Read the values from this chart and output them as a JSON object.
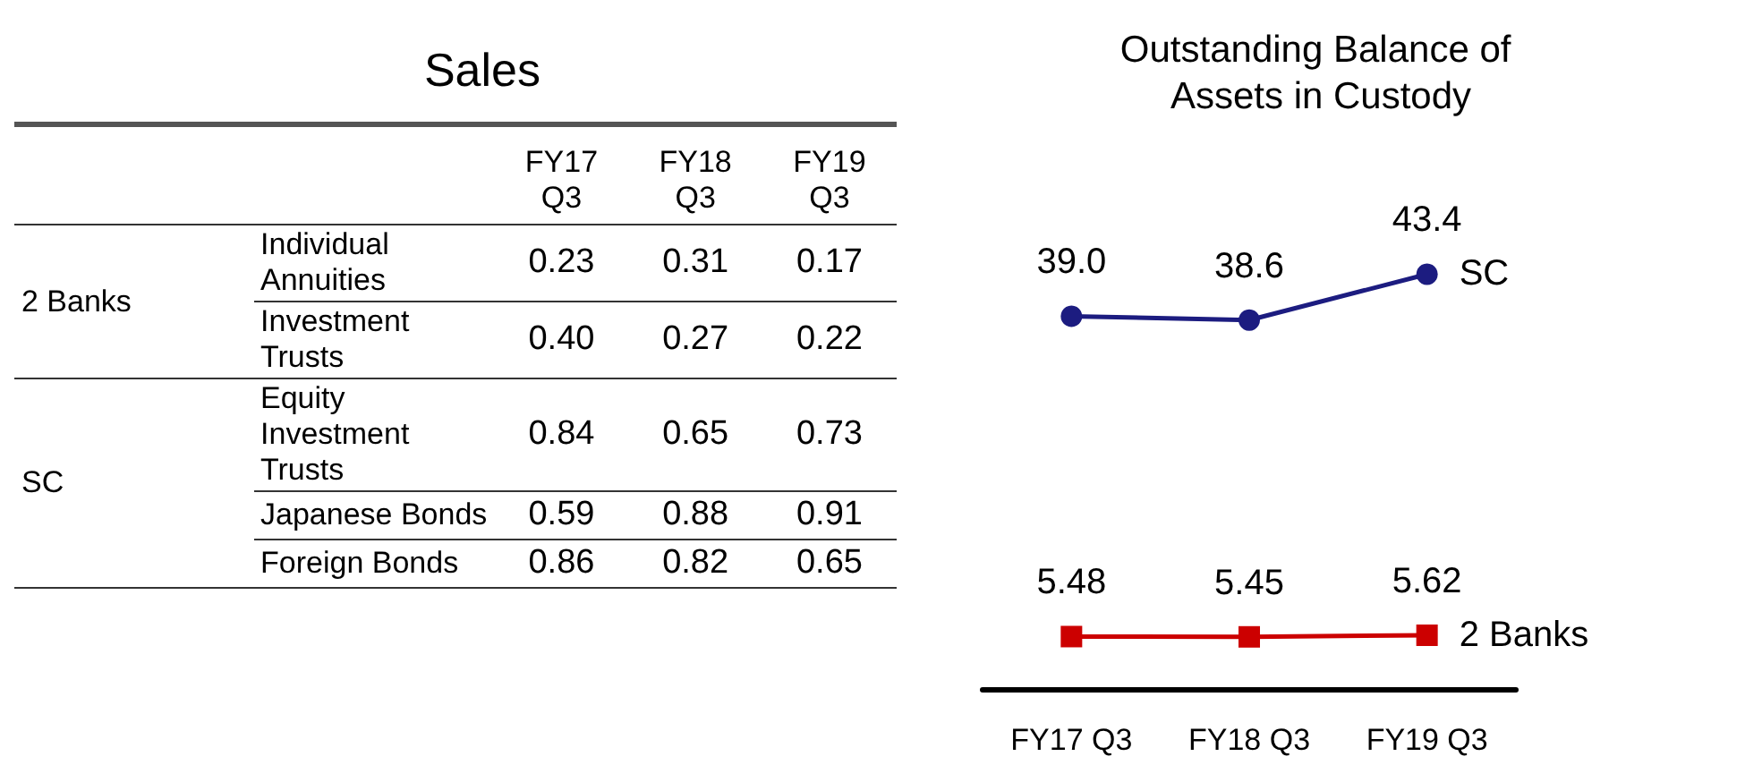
{
  "chart_data": [
    {
      "type": "other",
      "title": "Sales",
      "categories": [
        "FY17 Q3",
        "FY18 Q3",
        "FY19 Q3"
      ],
      "annotations": [
        "2 Banks",
        "SC"
      ],
      "series": [
        {
          "name": "Individual Annuities",
          "values": [
            0.23,
            0.31,
            0.17
          ],
          "value_labels": [
            "0.23",
            "0.31",
            "0.17"
          ]
        },
        {
          "name": "Investment Trusts",
          "values": [
            0.4,
            0.27,
            0.22
          ],
          "value_labels": [
            "0.40",
            "0.27",
            "0.22"
          ]
        },
        {
          "name": "Equity Investment Trusts",
          "values": [
            0.84,
            0.65,
            0.73
          ],
          "value_labels": [
            "0.84",
            "0.65",
            "0.73"
          ]
        },
        {
          "name": "Japanese Bonds",
          "values": [
            0.59,
            0.88,
            0.91
          ],
          "value_labels": [
            "0.59",
            "0.88",
            "0.91"
          ]
        },
        {
          "name": "Foreign Bonds",
          "values": [
            0.86,
            0.82,
            0.65
          ],
          "value_labels": [
            "0.86",
            "0.82",
            "0.65"
          ]
        }
      ]
    },
    {
      "type": "line",
      "title": "Outstanding Balance of Assets in Custody",
      "categories": [
        "FY17 Q3",
        "FY18 Q3",
        "FY19 Q3"
      ],
      "line_style": "solid",
      "series": [
        {
          "name": "SC",
          "color": "#1c1c80",
          "marker": "circle",
          "values": [
            39.0,
            38.6,
            43.4
          ],
          "value_labels": [
            "39.0",
            "38.6",
            "43.4"
          ]
        },
        {
          "name": "2 Banks",
          "color": "#cc0000",
          "marker": "square",
          "values": [
            5.48,
            5.45,
            5.62
          ],
          "value_labels": [
            "5.48",
            "5.45",
            "5.62"
          ]
        }
      ]
    }
  ]
}
